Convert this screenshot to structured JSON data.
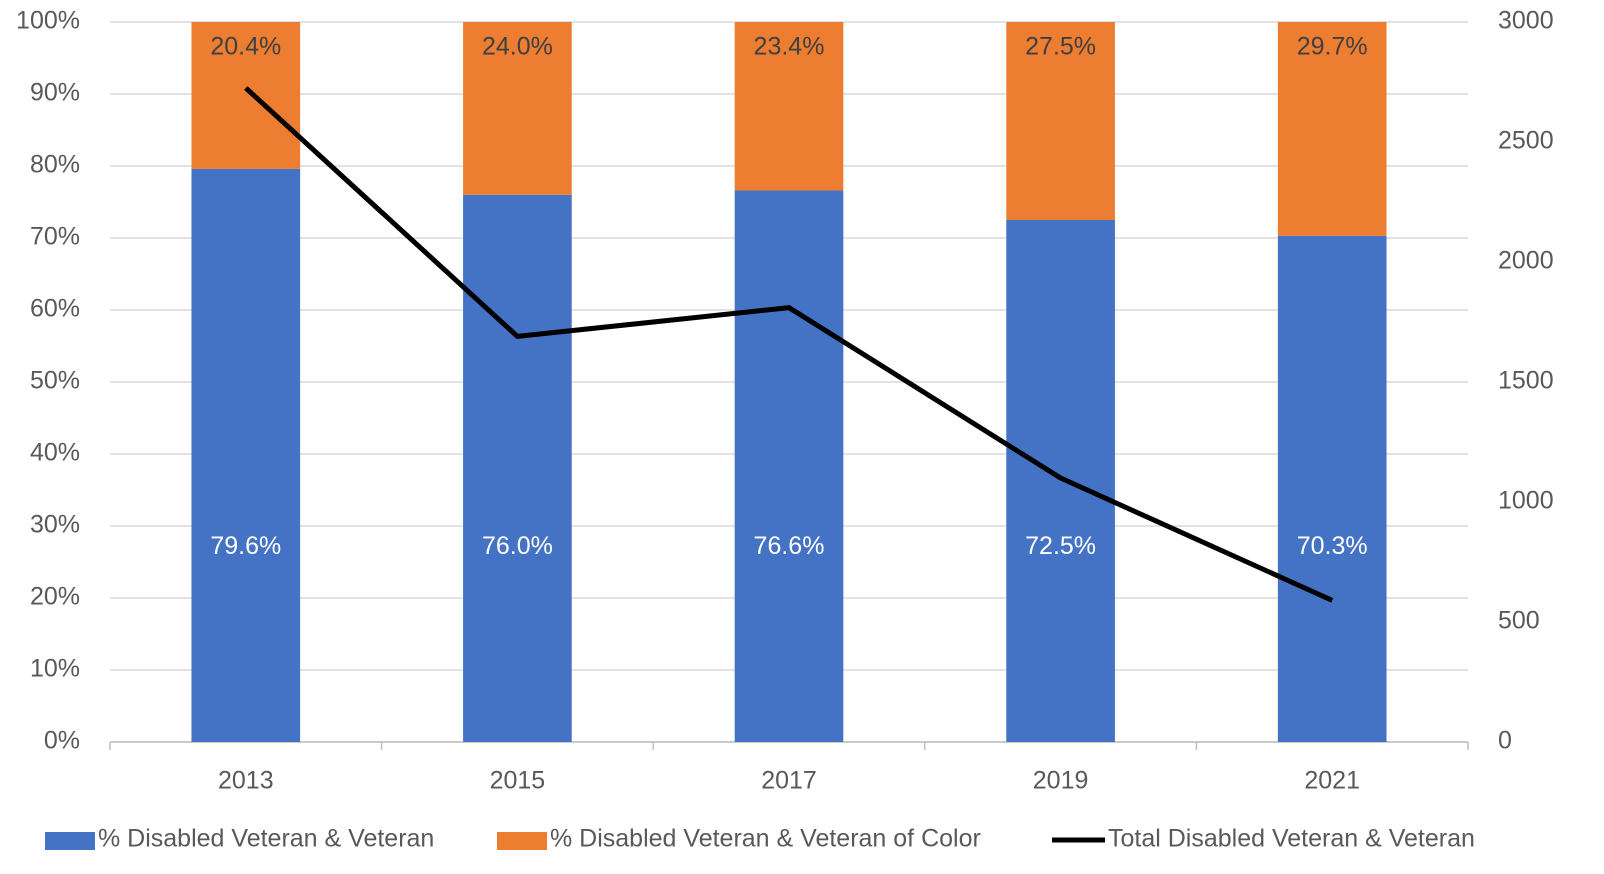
{
  "chart_data": {
    "type": "bar",
    "stacked": true,
    "categories": [
      "2013",
      "2015",
      "2017",
      "2019",
      "2021"
    ],
    "series": [
      {
        "name": "% Disabled Veteran & Veteran",
        "color": "#4472c4",
        "values": [
          79.6,
          76.0,
          76.6,
          72.5,
          70.3
        ],
        "value_labels": [
          "79.6%",
          "76.0%",
          "76.6%",
          "72.5%",
          "70.3%"
        ]
      },
      {
        "name": "% Disabled Veteran & Veteran of Color",
        "color": "#ed7d31",
        "values": [
          20.4,
          24.0,
          23.4,
          27.5,
          29.7
        ],
        "value_labels": [
          "20.4%",
          "24.0%",
          "23.4%",
          "27.5%",
          "29.7%"
        ]
      },
      {
        "name": "Total Disabled Veteran & Veteran",
        "color": "#000000",
        "type": "line",
        "axis": "y2",
        "values": [
          2725,
          1690,
          1810,
          1100,
          590
        ]
      }
    ],
    "ylim": [
      0,
      100
    ],
    "yticks": [
      {
        "value": 0,
        "label": "0%"
      },
      {
        "value": 10,
        "label": "10%"
      },
      {
        "value": 20,
        "label": "20%"
      },
      {
        "value": 30,
        "label": "30%"
      },
      {
        "value": 40,
        "label": "40%"
      },
      {
        "value": 50,
        "label": "50%"
      },
      {
        "value": 60,
        "label": "60%"
      },
      {
        "value": 70,
        "label": "70%"
      },
      {
        "value": 80,
        "label": "80%"
      },
      {
        "value": 90,
        "label": "90%"
      },
      {
        "value": 100,
        "label": "100%"
      }
    ],
    "y2lim": [
      0,
      3000
    ],
    "y2ticks": [
      0,
      500,
      1000,
      1500,
      2000,
      2500,
      3000
    ],
    "grid": true,
    "legend": "bottom"
  }
}
